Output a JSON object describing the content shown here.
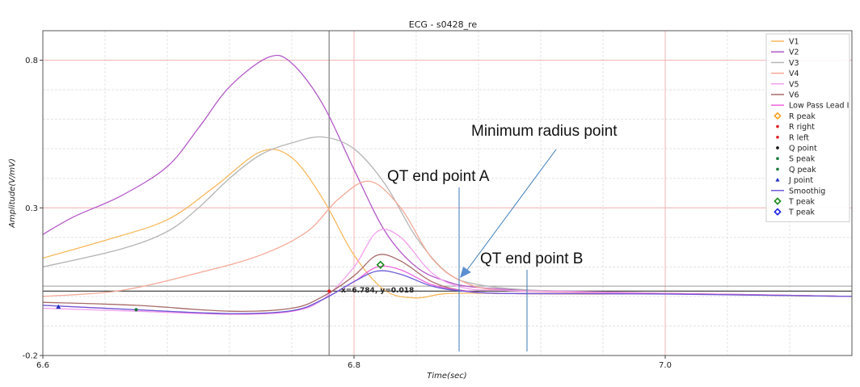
{
  "chart_data": {
    "type": "line",
    "title": "ECG - s0428_re",
    "xlabel": "Time(sec)",
    "ylabel": "Amplitude(V/mV)",
    "xlim": [
      6.6,
      7.12
    ],
    "ylim": [
      -0.2,
      0.9
    ],
    "xticks": [
      "6.6",
      "6.8",
      "7.0"
    ],
    "yticks": [
      "-0.2",
      "0.3",
      "0.8"
    ],
    "grid": true,
    "legend_position": "top-right",
    "series": [
      {
        "name": "V1",
        "color": "#f7b85e",
        "x": [
          6.6,
          6.64,
          6.68,
          6.71,
          6.74,
          6.76,
          6.78,
          6.8,
          6.82,
          6.84,
          6.86,
          6.9,
          6.95,
          7.0,
          7.05,
          7.12
        ],
        "y": [
          0.13,
          0.19,
          0.26,
          0.37,
          0.49,
          0.47,
          0.33,
          0.14,
          0.02,
          -0.005,
          0.01,
          0.01,
          0.008,
          0.01,
          0.005,
          0.0
        ]
      },
      {
        "name": "V2",
        "color": "#b45ac8",
        "x": [
          6.6,
          6.62,
          6.65,
          6.68,
          6.7,
          6.72,
          6.745,
          6.76,
          6.78,
          6.8,
          6.82,
          6.84,
          6.86,
          6.88,
          6.92,
          7.0,
          7.12
        ],
        "y": [
          0.21,
          0.27,
          0.34,
          0.44,
          0.57,
          0.71,
          0.81,
          0.79,
          0.65,
          0.43,
          0.22,
          0.1,
          0.05,
          0.03,
          0.02,
          0.01,
          0.0
        ]
      },
      {
        "name": "V3",
        "color": "#b5b5b5",
        "x": [
          6.6,
          6.65,
          6.68,
          6.7,
          6.72,
          6.74,
          6.76,
          6.78,
          6.8,
          6.82,
          6.84,
          6.86,
          6.88,
          6.92,
          7.0,
          7.12
        ],
        "y": [
          0.1,
          0.16,
          0.22,
          0.3,
          0.4,
          0.48,
          0.52,
          0.54,
          0.5,
          0.38,
          0.2,
          0.08,
          0.04,
          0.02,
          0.01,
          0.0
        ]
      },
      {
        "name": "V4",
        "color": "#f4a896",
        "x": [
          6.6,
          6.65,
          6.7,
          6.74,
          6.77,
          6.79,
          6.81,
          6.83,
          6.85,
          6.87,
          6.9,
          7.0,
          7.12
        ],
        "y": [
          0.0,
          0.02,
          0.08,
          0.14,
          0.22,
          0.33,
          0.39,
          0.3,
          0.13,
          0.05,
          0.02,
          0.01,
          0.0
        ]
      },
      {
        "name": "V5",
        "color": "#f2a0ee",
        "x": [
          6.6,
          6.66,
          6.72,
          6.76,
          6.78,
          6.8,
          6.815,
          6.83,
          6.85,
          6.87,
          6.9,
          7.0,
          7.12
        ],
        "y": [
          -0.04,
          -0.05,
          -0.06,
          -0.05,
          -0.01,
          0.1,
          0.22,
          0.2,
          0.08,
          0.03,
          0.02,
          0.01,
          0.0
        ]
      },
      {
        "name": "V6",
        "color": "#a86a6a",
        "x": [
          6.6,
          6.66,
          6.72,
          6.76,
          6.78,
          6.8,
          6.815,
          6.83,
          6.85,
          6.87,
          6.9,
          7.0,
          7.12
        ],
        "y": [
          -0.02,
          -0.03,
          -0.05,
          -0.04,
          0.0,
          0.07,
          0.14,
          0.12,
          0.05,
          0.02,
          0.01,
          0.01,
          0.0
        ]
      },
      {
        "name": "Low Pass Lead I",
        "color": "#ee66dd",
        "x": [
          6.6,
          6.66,
          6.72,
          6.76,
          6.78,
          6.8,
          6.815,
          6.83,
          6.85,
          6.87,
          6.9,
          7.0,
          7.12
        ],
        "y": [
          -0.03,
          -0.045,
          -0.06,
          -0.05,
          -0.01,
          0.05,
          0.1,
          0.09,
          0.04,
          0.02,
          0.01,
          0.01,
          0.0
        ]
      },
      {
        "name": "Smoothig",
        "color": "#6a5ad6",
        "x": [
          6.6,
          6.66,
          6.72,
          6.76,
          6.78,
          6.8,
          6.815,
          6.83,
          6.85,
          6.87,
          6.9,
          7.0,
          7.12
        ],
        "y": [
          -0.03,
          -0.045,
          -0.058,
          -0.048,
          -0.01,
          0.05,
          0.086,
          0.075,
          0.035,
          0.018,
          0.01,
          0.008,
          0.0
        ]
      }
    ],
    "markers": [
      {
        "name": "R peak",
        "shape": "diamond-open",
        "color": "#f5a020",
        "points": []
      },
      {
        "name": "R right",
        "shape": "dot",
        "color": "#e02020",
        "points": [
          [
            6.784,
            0.018
          ]
        ]
      },
      {
        "name": "R left",
        "shape": "dot",
        "color": "#e02020",
        "points": []
      },
      {
        "name": "Q point",
        "shape": "dot",
        "color": "#111111",
        "points": []
      },
      {
        "name": "S peak",
        "shape": "dot",
        "color": "#1a7a3a",
        "points": [
          [
            6.66,
            -0.045
          ]
        ]
      },
      {
        "name": "Q peak",
        "shape": "dot",
        "color": "#1a7a3a",
        "points": []
      },
      {
        "name": "J point",
        "shape": "triangle",
        "color": "#2030c0",
        "points": [
          [
            6.61,
            -0.035
          ]
        ]
      },
      {
        "name": "T peak",
        "shape": "diamond-open",
        "color": "#1a8a1a",
        "points": [
          [
            6.817,
            0.107
          ]
        ]
      },
      {
        "name": "T peak",
        "shape": "diamond-open",
        "color": "#1a1ae0",
        "points": []
      }
    ],
    "cursor": {
      "x": 6.784,
      "y": 0.018,
      "label": "x=6.784, y=0.018"
    },
    "hlines": [
      0.018,
      0.035
    ],
    "red_vlines": [
      6.8,
      7.0
    ],
    "annotations": [
      {
        "text": "Minimum radius point"
      },
      {
        "text": "QT end point A"
      },
      {
        "text": "QT end point B"
      }
    ]
  }
}
